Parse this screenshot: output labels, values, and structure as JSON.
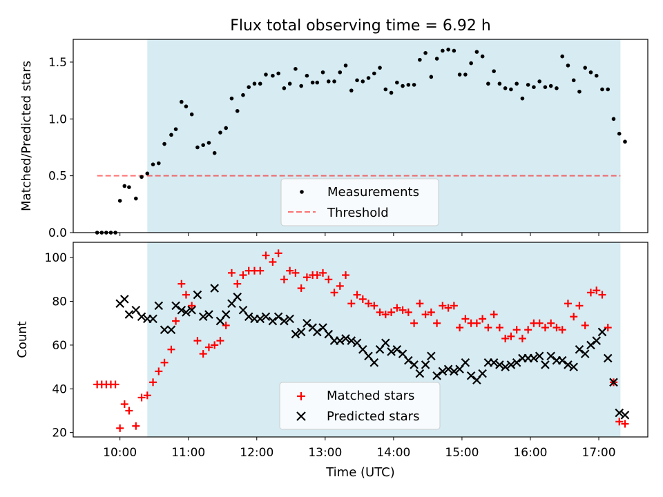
{
  "chart_data": [
    {
      "type": "scatter",
      "title": "Flux total observing time = 6.92 h",
      "xlabel": "",
      "ylabel": "Matched/Predicted stars",
      "xlim": [
        "09:19",
        "17:43"
      ],
      "ylim": [
        0.0,
        1.7
      ],
      "yticks": [
        0.0,
        0.5,
        1.0,
        1.5
      ],
      "ytick_labels": [
        "0.0",
        "0.5",
        "1.0",
        "1.5"
      ],
      "xticks": [
        "10:00",
        "11:00",
        "12:00",
        "13:00",
        "14:00",
        "15:00",
        "16:00",
        "17:00"
      ],
      "xtick_labels": [],
      "observing_window": [
        "10:24",
        "17:19"
      ],
      "threshold": 0.5,
      "threshold_range": [
        "09:40",
        "17:19"
      ],
      "legend": {
        "placement": "lower-center",
        "entries": [
          "Measurements",
          "Threshold"
        ]
      },
      "series": [
        {
          "name": "Measurements",
          "marker": "dot",
          "color": "#000000",
          "x": [
            "09:40",
            "09:44",
            "09:48",
            "09:52",
            "09:56",
            "10:00",
            "10:04",
            "10:08",
            "10:14",
            "10:19",
            "10:24",
            "10:29",
            "10:34",
            "10:39",
            "10:45",
            "10:49",
            "10:54",
            "10:58",
            "11:03",
            "11:08",
            "11:13",
            "11:18",
            "11:23",
            "11:28",
            "11:33",
            "11:38",
            "11:43",
            "11:48",
            "11:53",
            "11:58",
            "12:03",
            "12:08",
            "12:14",
            "12:19",
            "12:24",
            "12:29",
            "12:34",
            "12:39",
            "12:44",
            "12:49",
            "12:53",
            "12:58",
            "13:03",
            "13:08",
            "13:13",
            "13:18",
            "13:23",
            "13:28",
            "13:33",
            "13:38",
            "13:43",
            "13:48",
            "13:53",
            "13:58",
            "14:03",
            "14:08",
            "14:13",
            "14:18",
            "14:23",
            "14:28",
            "14:33",
            "14:38",
            "14:43",
            "14:48",
            "14:53",
            "14:58",
            "15:03",
            "15:08",
            "15:13",
            "15:18",
            "15:23",
            "15:28",
            "15:33",
            "15:38",
            "15:43",
            "15:48",
            "15:53",
            "15:58",
            "16:03",
            "16:08",
            "16:13",
            "16:18",
            "16:23",
            "16:28",
            "16:33",
            "16:38",
            "16:43",
            "16:48",
            "16:53",
            "16:58",
            "17:03",
            "17:08",
            "17:13",
            "17:18",
            "17:23"
          ],
          "y": [
            0.0,
            0.0,
            0.0,
            0.0,
            0.0,
            0.28,
            0.41,
            0.4,
            0.3,
            0.49,
            0.52,
            0.6,
            0.61,
            0.78,
            0.86,
            0.91,
            1.15,
            1.11,
            1.04,
            0.75,
            0.77,
            0.79,
            0.7,
            0.88,
            0.92,
            1.18,
            1.07,
            1.21,
            1.28,
            1.31,
            1.31,
            1.39,
            1.38,
            1.4,
            1.27,
            1.31,
            1.44,
            1.29,
            1.38,
            1.32,
            1.32,
            1.41,
            1.33,
            1.33,
            1.41,
            1.47,
            1.25,
            1.34,
            1.33,
            1.36,
            1.4,
            1.45,
            1.26,
            1.23,
            1.32,
            1.29,
            1.3,
            1.3,
            1.52,
            1.58,
            1.37,
            1.53,
            1.6,
            1.61,
            1.6,
            1.39,
            1.39,
            1.49,
            1.59,
            1.55,
            1.31,
            1.42,
            1.31,
            1.27,
            1.26,
            1.31,
            1.18,
            1.3,
            1.28,
            1.33,
            1.28,
            1.29,
            1.27,
            1.55,
            1.47,
            1.34,
            1.24,
            1.45,
            1.41,
            1.38,
            1.26,
            1.26,
            1.0,
            0.87,
            0.8
          ]
        }
      ]
    },
    {
      "type": "scatter",
      "title": "",
      "xlabel": "Time (UTC)",
      "ylabel": "Count",
      "xlim": [
        "09:19",
        "17:43"
      ],
      "ylim": [
        18,
        107
      ],
      "yticks": [
        20,
        40,
        60,
        80,
        100
      ],
      "ytick_labels": [
        "20",
        "40",
        "60",
        "80",
        "100"
      ],
      "xticks": [
        "10:00",
        "11:00",
        "12:00",
        "13:00",
        "14:00",
        "15:00",
        "16:00",
        "17:00"
      ],
      "xtick_labels": [
        "10:00",
        "11:00",
        "12:00",
        "13:00",
        "14:00",
        "15:00",
        "16:00",
        "17:00"
      ],
      "observing_window": [
        "10:24",
        "17:19"
      ],
      "legend": {
        "placement": "lower-center",
        "entries": [
          "Matched stars",
          "Predicted stars"
        ]
      },
      "series": [
        {
          "name": "Matched stars",
          "marker": "plus",
          "color": "#ff0000",
          "x": [
            "09:40",
            "09:44",
            "09:48",
            "09:52",
            "09:56",
            "10:00",
            "10:04",
            "10:08",
            "10:14",
            "10:19",
            "10:24",
            "10:29",
            "10:34",
            "10:39",
            "10:45",
            "10:49",
            "10:54",
            "10:58",
            "11:03",
            "11:08",
            "11:13",
            "11:18",
            "11:23",
            "11:28",
            "11:33",
            "11:38",
            "11:43",
            "11:48",
            "11:53",
            "11:58",
            "12:03",
            "12:08",
            "12:14",
            "12:19",
            "12:24",
            "12:29",
            "12:34",
            "12:39",
            "12:44",
            "12:49",
            "12:53",
            "12:58",
            "13:03",
            "13:08",
            "13:13",
            "13:18",
            "13:23",
            "13:28",
            "13:33",
            "13:38",
            "13:43",
            "13:48",
            "13:53",
            "13:58",
            "14:03",
            "14:08",
            "14:13",
            "14:18",
            "14:23",
            "14:28",
            "14:33",
            "14:38",
            "14:43",
            "14:48",
            "14:53",
            "14:58",
            "15:03",
            "15:08",
            "15:13",
            "15:18",
            "15:23",
            "15:28",
            "15:33",
            "15:38",
            "15:43",
            "15:48",
            "15:53",
            "15:58",
            "16:03",
            "16:08",
            "16:13",
            "16:18",
            "16:23",
            "16:28",
            "16:33",
            "16:38",
            "16:43",
            "16:48",
            "16:53",
            "16:58",
            "17:03",
            "17:08",
            "17:13",
            "17:18",
            "17:23"
          ],
          "y": [
            42,
            42,
            42,
            42,
            42,
            22,
            33,
            30,
            23,
            36,
            37,
            43,
            48,
            52,
            58,
            71,
            88,
            83,
            78,
            62,
            56,
            59,
            60,
            62,
            69,
            93,
            88,
            92,
            94,
            94,
            94,
            101,
            98,
            102,
            90,
            94,
            93,
            86,
            91,
            92,
            92,
            93,
            90,
            84,
            87,
            92,
            79,
            83,
            81,
            79,
            78,
            75,
            74,
            75,
            77,
            76,
            75,
            70,
            79,
            74,
            75,
            70,
            78,
            77,
            78,
            68,
            72,
            70,
            70,
            72,
            68,
            74,
            68,
            63,
            64,
            67,
            63,
            67,
            70,
            70,
            68,
            70,
            68,
            67,
            79,
            73,
            78,
            69,
            84,
            85,
            83,
            68,
            43,
            25,
            24
          ]
        },
        {
          "name": "Predicted stars",
          "marker": "x",
          "color": "#000000",
          "x": [
            "10:00",
            "10:04",
            "10:08",
            "10:14",
            "10:19",
            "10:24",
            "10:29",
            "10:34",
            "10:39",
            "10:45",
            "10:49",
            "10:54",
            "10:58",
            "11:03",
            "11:08",
            "11:13",
            "11:18",
            "11:23",
            "11:28",
            "11:33",
            "11:38",
            "11:43",
            "11:48",
            "11:53",
            "11:58",
            "12:03",
            "12:08",
            "12:14",
            "12:19",
            "12:24",
            "12:29",
            "12:34",
            "12:39",
            "12:44",
            "12:49",
            "12:53",
            "12:58",
            "13:03",
            "13:08",
            "13:13",
            "13:18",
            "13:23",
            "13:28",
            "13:33",
            "13:38",
            "13:43",
            "13:48",
            "13:53",
            "13:58",
            "14:03",
            "14:08",
            "14:13",
            "14:18",
            "14:23",
            "14:28",
            "14:33",
            "14:38",
            "14:43",
            "14:48",
            "14:53",
            "14:58",
            "15:03",
            "15:08",
            "15:13",
            "15:18",
            "15:23",
            "15:28",
            "15:33",
            "15:38",
            "15:43",
            "15:48",
            "15:53",
            "15:58",
            "16:03",
            "16:08",
            "16:13",
            "16:18",
            "16:23",
            "16:28",
            "16:33",
            "16:38",
            "16:43",
            "16:48",
            "16:53",
            "16:58",
            "17:03",
            "17:08",
            "17:13",
            "17:18",
            "17:23"
          ],
          "y": [
            79,
            81,
            74,
            76,
            73,
            72,
            72,
            78,
            67,
            67,
            78,
            76,
            75,
            76,
            83,
            73,
            74,
            86,
            71,
            74,
            79,
            82,
            76,
            73,
            72,
            72,
            73,
            71,
            73,
            71,
            72,
            65,
            66,
            70,
            68,
            66,
            68,
            65,
            62,
            62,
            63,
            62,
            61,
            58,
            55,
            52,
            58,
            61,
            57,
            58,
            56,
            53,
            51,
            47,
            51,
            55,
            46,
            48,
            49,
            48,
            49,
            52,
            46,
            44,
            47,
            52,
            52,
            51,
            50,
            51,
            52,
            54,
            54,
            54,
            55,
            51,
            55,
            53,
            53,
            51,
            50,
            58,
            56,
            60,
            62,
            66,
            54,
            43,
            29,
            28
          ]
        }
      ]
    }
  ]
}
